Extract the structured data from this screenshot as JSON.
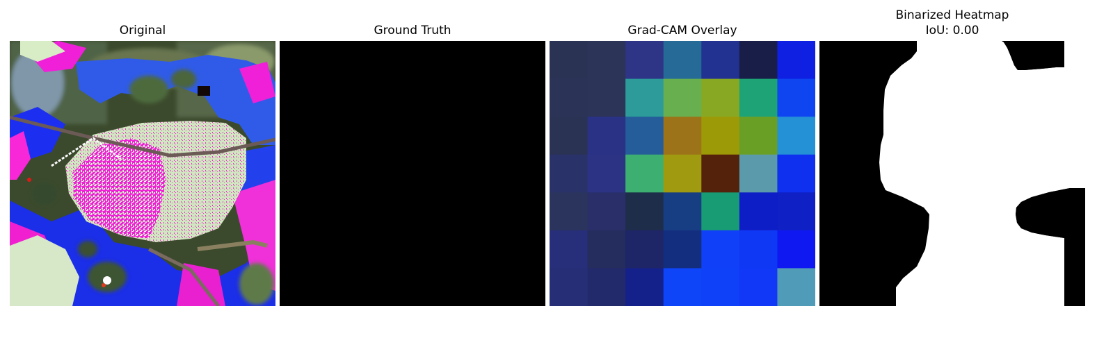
{
  "panels": [
    {
      "title": "Original"
    },
    {
      "title": "Ground Truth"
    },
    {
      "title": "Grad-CAM Overlay"
    },
    {
      "title": "Binarized Heatmap",
      "subtitle": "IoU: 0.00"
    }
  ],
  "gradcam": {
    "grid_size": 7,
    "cell_colors": [
      [
        "#2b3355",
        "#2c3458",
        "#2e3486",
        "#266a98",
        "#213290",
        "#181e48",
        "#1020e2"
      ],
      [
        "#2b3357",
        "#2c3458",
        "#2c9b9a",
        "#68af50",
        "#88a823",
        "#1ea377",
        "#0f45f0"
      ],
      [
        "#2b3355",
        "#2a3286",
        "#255c9a",
        "#9c7318",
        "#9d9a07",
        "#6a9f25",
        "#2490d6"
      ],
      [
        "#29336a",
        "#2c3385",
        "#3daf70",
        "#a09a10",
        "#54210a",
        "#5a9aaa",
        "#1030f0"
      ],
      [
        "#2a345c",
        "#2a2f6a",
        "#1e2d4a",
        "#173e82",
        "#189c74",
        "#0e1ec7",
        "#0f20c4"
      ],
      [
        "#272f7a",
        "#252c5e",
        "#1e2668",
        "#132e7f",
        "#1040f7",
        "#0f38f5",
        "#1018f2"
      ],
      [
        "#262e76",
        "#232a6c",
        "#15218a",
        "#0e45f8",
        "#0f42f8",
        "#1038f6",
        "#4f9bb8"
      ]
    ]
  },
  "colors": {
    "ground_truth_fill": "#000000",
    "binarized_background": "#000000",
    "binarized_foreground": "#ffffff"
  }
}
